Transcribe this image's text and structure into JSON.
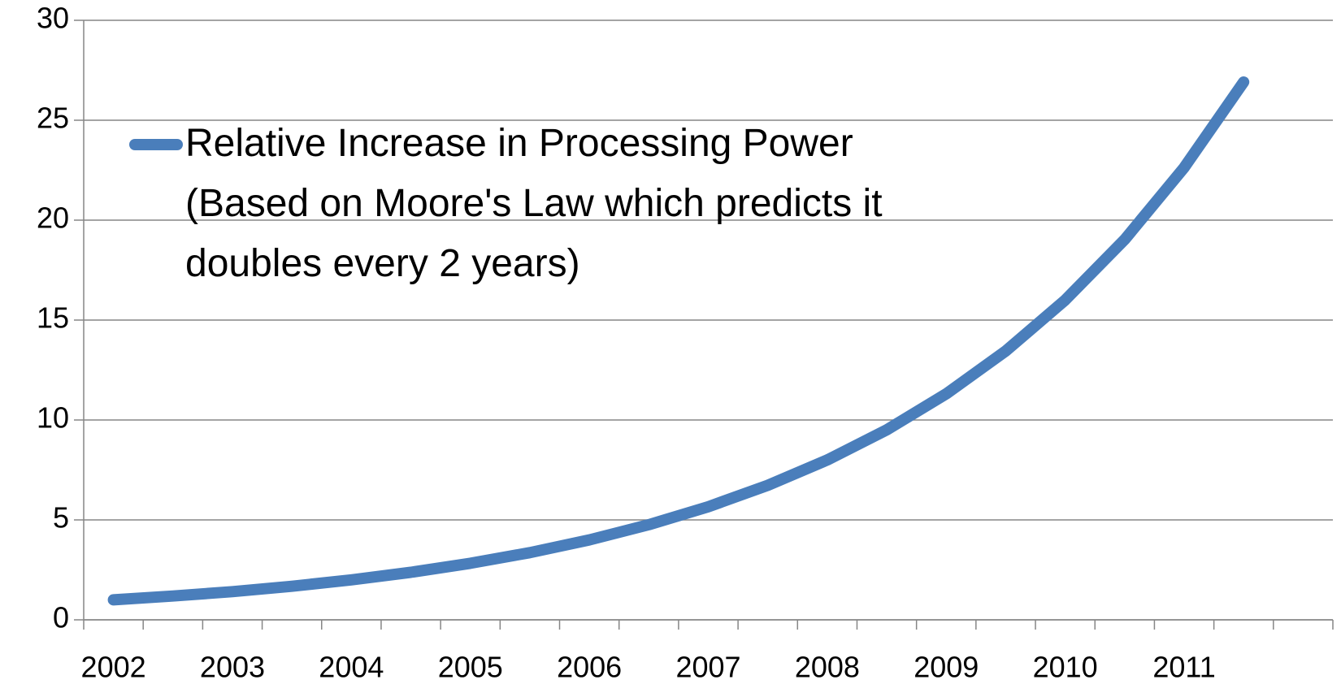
{
  "chart_data": {
    "type": "line",
    "categories": [
      "2002",
      null,
      "2003",
      null,
      "2004",
      null,
      "2005",
      null,
      "2006",
      null,
      "2007",
      null,
      "2008",
      null,
      "2009",
      null,
      "2010",
      null,
      "2011",
      null,
      null
    ],
    "series": [
      {
        "name": "Relative Increase in Processing Power (Based on Moore's Law which predicts it doubles every 2 years)",
        "color": "#4a7ebb",
        "values": [
          1,
          1.19,
          1.41,
          1.68,
          2,
          2.38,
          2.83,
          3.36,
          4,
          4.76,
          5.66,
          6.73,
          8,
          9.51,
          11.31,
          13.45,
          16,
          19.03,
          22.63,
          26.91,
          null
        ]
      }
    ],
    "ylim": [
      0,
      30
    ],
    "yticks": [
      0,
      5,
      10,
      15,
      20,
      25,
      30
    ],
    "grid": true,
    "legend": "top-left"
  }
}
